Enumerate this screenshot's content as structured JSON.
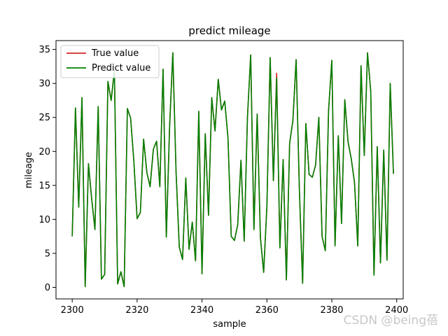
{
  "chart_data": {
    "type": "line",
    "title": "predict mileage",
    "xlabel": "sample",
    "ylabel": "mileage",
    "xlim": [
      2295,
      2402
    ],
    "ylim": [
      -1.7,
      36.3
    ],
    "xticks": [
      2300,
      2320,
      2340,
      2360,
      2380,
      2400
    ],
    "yticks": [
      0,
      5,
      10,
      15,
      20,
      25,
      30,
      35
    ],
    "grid": false,
    "legend": "top-left",
    "x": [
      2300,
      2301,
      2302,
      2303,
      2304,
      2305,
      2306,
      2307,
      2308,
      2309,
      2310,
      2311,
      2312,
      2313,
      2314,
      2315,
      2316,
      2317,
      2318,
      2319,
      2320,
      2321,
      2322,
      2323,
      2324,
      2325,
      2326,
      2327,
      2328,
      2329,
      2330,
      2331,
      2332,
      2333,
      2334,
      2335,
      2336,
      2337,
      2338,
      2339,
      2340,
      2341,
      2342,
      2343,
      2344,
      2345,
      2346,
      2347,
      2348,
      2349,
      2350,
      2351,
      2352,
      2353,
      2354,
      2355,
      2356,
      2357,
      2358,
      2359,
      2360,
      2361,
      2362,
      2363,
      2364,
      2365,
      2366,
      2367,
      2368,
      2369,
      2370,
      2371,
      2372,
      2373,
      2374,
      2375,
      2376,
      2377,
      2378,
      2379,
      2380,
      2381,
      2382,
      2383,
      2384,
      2385,
      2386,
      2387,
      2388,
      2389,
      2390,
      2391,
      2392,
      2393,
      2394,
      2395,
      2396,
      2397,
      2398,
      2399
    ],
    "series": [
      {
        "name": "True value",
        "color": "#d62728",
        "values": [
          7.5,
          26.4,
          11.8,
          27.9,
          0.1,
          18.2,
          13.0,
          8.5,
          26.6,
          1.2,
          1.9,
          30.3,
          27.5,
          31.9,
          0.5,
          2.3,
          0.1,
          26.3,
          24.9,
          18.5,
          10.1,
          11.0,
          21.8,
          16.9,
          14.8,
          20.3,
          21.5,
          14.8,
          32.1,
          7.4,
          23.5,
          34.5,
          17.0,
          5.9,
          4.1,
          16.1,
          5.6,
          9.6,
          3.9,
          25.9,
          2.0,
          22.6,
          10.6,
          27.9,
          23.0,
          30.6,
          26.1,
          27.4,
          22.0,
          7.5,
          6.9,
          9.2,
          18.7,
          6.8,
          25.0,
          34.2,
          8.5,
          25.5,
          7.3,
          2.2,
          12.0,
          33.8,
          15.7,
          31.5,
          5.8,
          18.8,
          1.1,
          21.2,
          24.5,
          33.5,
          14.4,
          0.6,
          24.1,
          16.6,
          16.2,
          18.0,
          25.0,
          7.5,
          5.4,
          26.0,
          33.4,
          6.1,
          22.3,
          9.4,
          27.6,
          21.4,
          18.9,
          15.4,
          6.1,
          32.6,
          19.4,
          34.5,
          28.8,
          1.8,
          20.7,
          3.6,
          20.2,
          4.0,
          30.0,
          16.7
        ]
      },
      {
        "name": "Predict value",
        "color": "#008000",
        "values": [
          7.5,
          26.4,
          11.8,
          27.9,
          0.1,
          18.2,
          13.0,
          8.5,
          26.6,
          1.2,
          1.9,
          30.3,
          27.5,
          31.9,
          0.5,
          2.3,
          0.1,
          26.3,
          24.9,
          18.5,
          10.1,
          11.0,
          21.8,
          16.9,
          14.8,
          20.3,
          21.5,
          14.8,
          32.1,
          7.4,
          23.5,
          34.5,
          17.0,
          5.9,
          4.1,
          16.1,
          5.6,
          9.6,
          3.9,
          25.9,
          2.0,
          22.6,
          10.6,
          27.9,
          23.0,
          30.6,
          26.1,
          27.4,
          22.0,
          7.5,
          6.9,
          9.2,
          18.7,
          6.8,
          25.0,
          34.2,
          8.5,
          25.5,
          7.3,
          2.2,
          12.0,
          33.8,
          15.7,
          30.8,
          5.8,
          18.8,
          1.1,
          21.2,
          24.5,
          33.5,
          14.4,
          0.6,
          24.1,
          16.6,
          16.2,
          18.0,
          25.0,
          7.5,
          5.4,
          26.0,
          33.4,
          6.1,
          22.3,
          9.4,
          27.6,
          21.4,
          18.9,
          15.4,
          6.1,
          32.6,
          19.4,
          34.5,
          28.8,
          1.8,
          20.7,
          3.6,
          20.2,
          4.0,
          30.0,
          16.7
        ]
      }
    ]
  },
  "watermark": "CSDN @being蓓"
}
